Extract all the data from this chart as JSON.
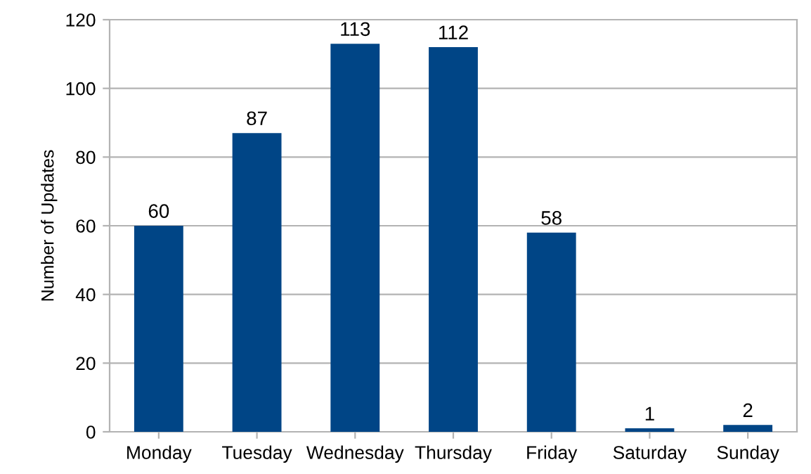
{
  "chart_data": {
    "type": "bar",
    "ylabel": "Number of Updates",
    "categories": [
      "Monday",
      "Tuesday",
      "Wednesday",
      "Thursday",
      "Friday",
      "Saturday",
      "Sunday"
    ],
    "values": [
      60,
      87,
      113,
      112,
      58,
      1,
      2
    ],
    "color": "#004586",
    "ylim": [
      0,
      120
    ],
    "yticks": [
      0,
      20,
      40,
      60,
      80,
      100,
      120
    ],
    "grid": "y",
    "data_labels": true
  }
}
